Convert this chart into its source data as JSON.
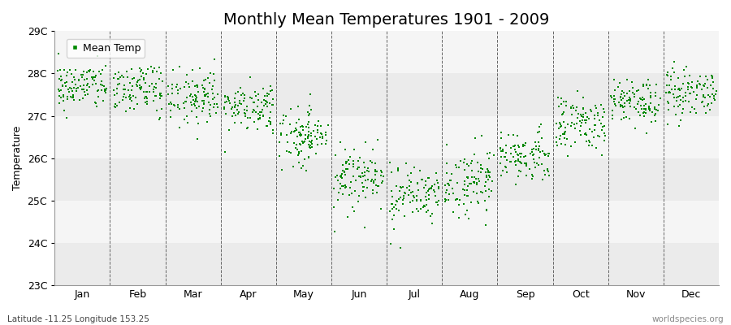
{
  "title": "Monthly Mean Temperatures 1901 - 2009",
  "ylabel": "Temperature",
  "xlabel_bottom_left": "Latitude -11.25 Longitude 153.25",
  "xlabel_bottom_right": "worldspecies.org",
  "legend_label": "Mean Temp",
  "marker_color": "#008800",
  "ylim": [
    23.0,
    29.0
  ],
  "yticks": [
    23,
    24,
    25,
    26,
    27,
    28,
    29
  ],
  "ytick_labels": [
    "23C",
    "24C",
    "25C",
    "26C",
    "27C",
    "28C",
    "29C"
  ],
  "months": [
    "Jan",
    "Feb",
    "Mar",
    "Apr",
    "May",
    "Jun",
    "Jul",
    "Aug",
    "Sep",
    "Oct",
    "Nov",
    "Dec"
  ],
  "monthly_means": [
    27.7,
    27.65,
    27.45,
    27.2,
    26.5,
    25.6,
    25.2,
    25.4,
    26.1,
    26.8,
    27.3,
    27.6
  ],
  "monthly_stds": [
    0.28,
    0.28,
    0.28,
    0.3,
    0.32,
    0.35,
    0.35,
    0.35,
    0.32,
    0.3,
    0.28,
    0.28
  ],
  "n_years": 109,
  "background_color": "#ffffff",
  "band_color_odd": "#ebebeb",
  "band_color_even": "#f5f5f5",
  "grid_color": "#666666",
  "seed": 42,
  "marker_size": 4,
  "title_fontsize": 14,
  "axis_fontsize": 9,
  "tick_fontsize": 9,
  "figsize": [
    9.0,
    4.0
  ],
  "dpi": 100
}
